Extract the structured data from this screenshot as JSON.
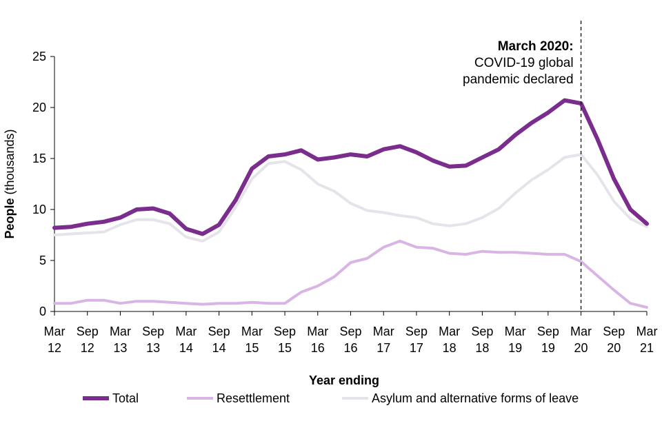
{
  "chart_data": {
    "type": "line",
    "xlabel": "Year ending",
    "ylabel_bold": "People",
    "ylabel_rest": " (thousands)",
    "ylim": [
      0,
      25
    ],
    "yticks": [
      "0",
      "5",
      "10",
      "15",
      "20",
      "25"
    ],
    "xtick_labels": [
      {
        "month": "Mar",
        "year": "12"
      },
      {
        "month": "Sep",
        "year": "12"
      },
      {
        "month": "Mar",
        "year": "13"
      },
      {
        "month": "Sep",
        "year": "13"
      },
      {
        "month": "Mar",
        "year": "14"
      },
      {
        "month": "Sep",
        "year": "14"
      },
      {
        "month": "Mar",
        "year": "15"
      },
      {
        "month": "Sep",
        "year": "15"
      },
      {
        "month": "Mar",
        "year": "16"
      },
      {
        "month": "Sep",
        "year": "16"
      },
      {
        "month": "Mar",
        "year": "17"
      },
      {
        "month": "Sep",
        "year": "17"
      },
      {
        "month": "Mar",
        "year": "18"
      },
      {
        "month": "Sep",
        "year": "18"
      },
      {
        "month": "Mar",
        "year": "19"
      },
      {
        "month": "Sep",
        "year": "19"
      },
      {
        "month": "Mar",
        "year": "20"
      },
      {
        "month": "Sep",
        "year": "20"
      },
      {
        "month": "Mar",
        "year": "21"
      }
    ],
    "x_quarters": [
      "Mar 12",
      "Jun 12",
      "Sep 12",
      "Dec 12",
      "Mar 13",
      "Jun 13",
      "Sep 13",
      "Dec 13",
      "Mar 14",
      "Jun 14",
      "Sep 14",
      "Dec 14",
      "Mar 15",
      "Jun 15",
      "Sep 15",
      "Dec 15",
      "Mar 16",
      "Jun 16",
      "Sep 16",
      "Dec 16",
      "Mar 17",
      "Jun 17",
      "Sep 17",
      "Dec 17",
      "Mar 18",
      "Jun 18",
      "Sep 18",
      "Dec 18",
      "Mar 19",
      "Jun 19",
      "Sep 19",
      "Dec 19",
      "Mar 20",
      "Jun 20",
      "Sep 20",
      "Dec 20",
      "Mar 21"
    ],
    "series": [
      {
        "name": "Total",
        "color": "#7B2D8E",
        "values": [
          8.2,
          8.3,
          8.6,
          8.8,
          9.2,
          10.0,
          10.1,
          9.6,
          8.1,
          7.6,
          8.5,
          10.9,
          14.0,
          15.2,
          15.4,
          15.8,
          14.9,
          15.1,
          15.4,
          15.2,
          15.9,
          16.2,
          15.6,
          14.8,
          14.2,
          14.3,
          15.1,
          15.9,
          17.3,
          18.5,
          19.5,
          20.7,
          20.4,
          16.9,
          13.0,
          10.0,
          8.6
        ]
      },
      {
        "name": "Resettlement",
        "color": "#D9B5E6",
        "values": [
          0.8,
          0.8,
          1.1,
          1.1,
          0.8,
          1.0,
          1.0,
          0.9,
          0.8,
          0.7,
          0.8,
          0.8,
          0.9,
          0.8,
          0.8,
          1.9,
          2.5,
          3.4,
          4.8,
          5.2,
          6.3,
          6.9,
          6.3,
          6.2,
          5.7,
          5.6,
          5.9,
          5.8,
          5.8,
          5.7,
          5.6,
          5.6,
          4.9,
          3.5,
          2.1,
          0.8,
          0.4
        ]
      },
      {
        "name": "Asylum and alternative forms of leave",
        "color": "#E6E4EB",
        "values": [
          7.5,
          7.6,
          7.7,
          7.8,
          8.5,
          9.0,
          9.0,
          8.6,
          7.3,
          6.9,
          7.8,
          10.2,
          13.0,
          14.5,
          14.7,
          13.9,
          12.5,
          11.8,
          10.6,
          9.9,
          9.7,
          9.4,
          9.2,
          8.6,
          8.4,
          8.6,
          9.2,
          10.1,
          11.6,
          12.9,
          13.9,
          15.1,
          15.4,
          13.4,
          10.8,
          9.1,
          8.3
        ]
      }
    ],
    "annotation": {
      "x": "Mar 20",
      "title": "March 2020:",
      "line1": "COVID-19 global",
      "line2": "pandemic declared"
    },
    "legend_position": "bottom"
  }
}
